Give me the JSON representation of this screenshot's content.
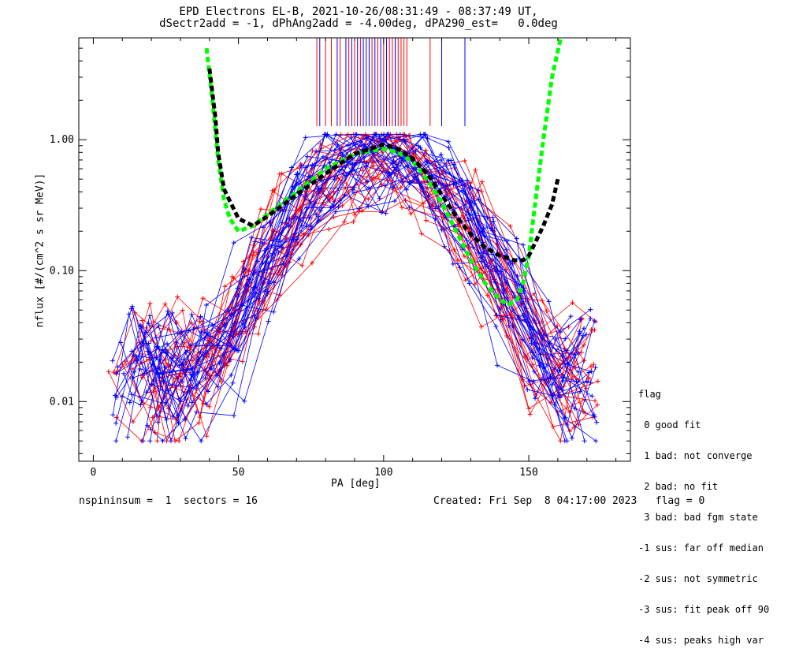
{
  "title_line1": "EPD Electrons EL-B, 2021-10-26/08:31:49 - 08:37:49 UT,",
  "title_line2": "dSectr2add = -1, dPhAng2add = -4.00deg, dPA290_est=   0.0deg",
  "footer_left": "nspininsum =  1  sectors = 16",
  "footer_right": "Created: Fri Sep  8 04:17:00 2023   flag = 0",
  "legend": {
    "title": "flag",
    "items": [
      " 0 good fit",
      " 1 bad: not converge",
      " 2 bad: no fit",
      " 3 bad: bad fgm state",
      "-1 sus: far off median",
      "-2 sus: not symmetric",
      "-3 sus: fit peak off 90",
      "-4 sus: peaks high var"
    ]
  },
  "colors": {
    "red": "#ff0000",
    "blue": "#0000ff",
    "green": "#00ff00",
    "black": "#000000"
  },
  "chart_data": {
    "type": "line",
    "xlabel": "PA [deg]",
    "ylabel": "nflux [#/(cm^2 s sr MeV)]",
    "xlim": [
      -5,
      185
    ],
    "ylim": [
      0.0035,
      6.0
    ],
    "yscale": "log",
    "x_ticks": [
      0,
      50,
      100,
      150
    ],
    "y_ticks": [
      {
        "value": 0.01,
        "label": "0.01"
      },
      {
        "value": 0.1,
        "label": "0.10"
      },
      {
        "value": 1.0,
        "label": "1.00"
      }
    ],
    "vertical_marks": {
      "red": [
        77,
        80,
        82,
        85,
        88,
        90,
        92,
        96,
        98,
        100,
        102,
        103,
        104,
        105,
        106,
        107,
        108,
        116
      ],
      "blue": [
        78,
        84,
        87,
        89,
        91,
        93,
        94,
        95,
        97,
        99,
        101,
        104,
        120,
        128
      ]
    },
    "fits": [
      {
        "color": "green",
        "x": [
          39,
          41,
          43,
          45,
          47,
          50,
          55,
          60,
          70,
          80,
          90,
          100,
          105,
          110,
          115,
          120,
          125,
          130,
          135,
          140,
          143,
          146,
          148,
          150,
          152,
          155,
          158,
          161
        ],
        "y": [
          5.0,
          2.0,
          0.7,
          0.35,
          0.25,
          0.2,
          0.22,
          0.27,
          0.4,
          0.6,
          0.78,
          0.85,
          0.8,
          0.68,
          0.5,
          0.33,
          0.2,
          0.12,
          0.08,
          0.06,
          0.055,
          0.06,
          0.08,
          0.13,
          0.3,
          1.0,
          3.0,
          6.0
        ]
      },
      {
        "color": "black",
        "x": [
          40,
          42,
          43,
          45,
          50,
          55,
          60,
          70,
          80,
          90,
          100,
          105,
          110,
          115,
          120,
          125,
          130,
          135,
          140,
          145,
          148,
          150,
          152,
          155,
          158,
          160
        ],
        "y": [
          3.5,
          1.5,
          0.8,
          0.42,
          0.25,
          0.22,
          0.26,
          0.38,
          0.55,
          0.78,
          0.92,
          0.85,
          0.72,
          0.55,
          0.38,
          0.26,
          0.19,
          0.15,
          0.13,
          0.12,
          0.12,
          0.13,
          0.16,
          0.22,
          0.32,
          0.5
        ]
      }
    ]
  }
}
